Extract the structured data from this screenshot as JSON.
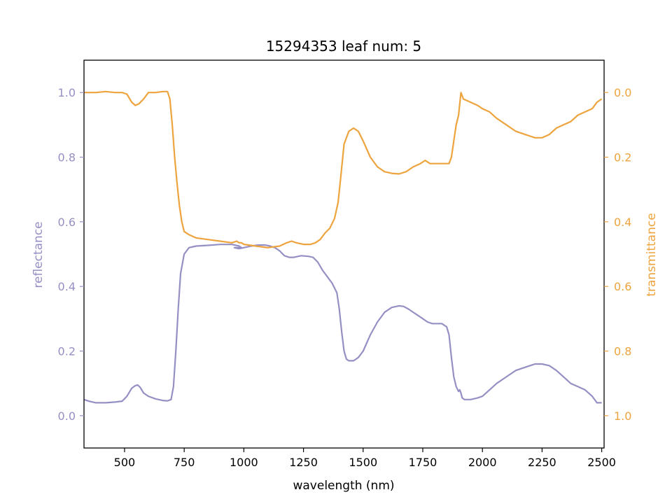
{
  "chart_data": {
    "type": "line",
    "title": "15294353 leaf num: 5",
    "xlabel": "wavelength (nm)",
    "ylabel_left": "reflectance",
    "ylabel_right": "transmittance",
    "xlim": [
      330,
      2510
    ],
    "ylim_left": [
      -0.1,
      1.1
    ],
    "ylim_right": [
      1.1,
      -0.1
    ],
    "right_axis_inverted": true,
    "x_ticks": [
      500,
      750,
      1000,
      1250,
      1500,
      1750,
      2000,
      2250,
      2500
    ],
    "y_ticks_left": [
      0.0,
      0.2,
      0.4,
      0.6,
      0.8,
      1.0
    ],
    "y_ticks_right": [
      0.0,
      0.2,
      0.4,
      0.6,
      0.8,
      1.0
    ],
    "grid": false,
    "legend": "none",
    "colors": {
      "reflectance": "#9590c4",
      "transmittance": "#eea43e",
      "axis": "#000000"
    },
    "series": [
      {
        "name": "reflectance",
        "axis": "left",
        "x": [
          330,
          350,
          380,
          420,
          460,
          490,
          510,
          530,
          545,
          555,
          565,
          580,
          600,
          630,
          660,
          680,
          695,
          705,
          715,
          725,
          735,
          750,
          770,
          800,
          850,
          900,
          950,
          980,
          990,
          960,
          980,
          1000,
          1030,
          1060,
          1090,
          1110,
          1130,
          1150,
          1170,
          1190,
          1210,
          1240,
          1270,
          1290,
          1310,
          1330,
          1350,
          1370,
          1390,
          1400,
          1410,
          1420,
          1430,
          1440,
          1450,
          1460,
          1480,
          1500,
          1530,
          1560,
          1590,
          1620,
          1650,
          1670,
          1690,
          1710,
          1730,
          1750,
          1770,
          1790,
          1810,
          1830,
          1850,
          1860,
          1870,
          1880,
          1890,
          1900,
          1905,
          1910,
          1915,
          1925,
          1950,
          1980,
          2000,
          2030,
          2060,
          2100,
          2140,
          2180,
          2220,
          2250,
          2280,
          2310,
          2340,
          2370,
          2400,
          2430,
          2460,
          2480,
          2500
        ],
        "y": [
          0.05,
          0.045,
          0.04,
          0.04,
          0.042,
          0.045,
          0.06,
          0.085,
          0.093,
          0.095,
          0.088,
          0.07,
          0.06,
          0.052,
          0.047,
          0.046,
          0.05,
          0.09,
          0.2,
          0.33,
          0.44,
          0.5,
          0.52,
          0.525,
          0.527,
          0.53,
          0.53,
          0.525,
          0.52,
          0.52,
          0.517,
          0.52,
          0.525,
          0.528,
          0.528,
          0.525,
          0.52,
          0.51,
          0.495,
          0.49,
          0.49,
          0.495,
          0.493,
          0.49,
          0.475,
          0.45,
          0.43,
          0.41,
          0.38,
          0.33,
          0.26,
          0.2,
          0.175,
          0.17,
          0.17,
          0.17,
          0.18,
          0.2,
          0.25,
          0.29,
          0.32,
          0.335,
          0.34,
          0.338,
          0.33,
          0.32,
          0.31,
          0.3,
          0.29,
          0.285,
          0.285,
          0.285,
          0.275,
          0.25,
          0.18,
          0.12,
          0.09,
          0.075,
          0.08,
          0.07,
          0.055,
          0.05,
          0.05,
          0.055,
          0.06,
          0.08,
          0.1,
          0.12,
          0.14,
          0.15,
          0.16,
          0.16,
          0.155,
          0.14,
          0.12,
          0.1,
          0.09,
          0.08,
          0.06,
          0.04,
          0.04
        ]
      },
      {
        "name": "transmittance",
        "axis": "right",
        "x": [
          330,
          350,
          380,
          420,
          460,
          490,
          510,
          530,
          545,
          560,
          580,
          600,
          630,
          660,
          680,
          690,
          700,
          710,
          720,
          730,
          740,
          750,
          770,
          800,
          850,
          900,
          950,
          970,
          980,
          990,
          1000,
          1050,
          1100,
          1150,
          1180,
          1200,
          1220,
          1250,
          1280,
          1300,
          1320,
          1340,
          1360,
          1380,
          1395,
          1405,
          1420,
          1440,
          1460,
          1480,
          1500,
          1530,
          1560,
          1590,
          1620,
          1650,
          1680,
          1710,
          1740,
          1760,
          1780,
          1800,
          1820,
          1840,
          1860,
          1870,
          1880,
          1890,
          1900,
          1910,
          1920,
          1950,
          1980,
          2000,
          2030,
          2060,
          2100,
          2140,
          2180,
          2220,
          2250,
          2280,
          2310,
          2340,
          2370,
          2400,
          2430,
          2460,
          2480,
          2500
        ],
        "y": [
          0.0,
          0.0,
          0.0,
          -0.003,
          0.0,
          0.0,
          0.005,
          0.03,
          0.04,
          0.035,
          0.02,
          0.0,
          0.0,
          -0.003,
          -0.003,
          0.02,
          0.1,
          0.2,
          0.28,
          0.35,
          0.4,
          0.43,
          0.44,
          0.45,
          0.455,
          0.46,
          0.465,
          0.46,
          0.465,
          0.465,
          0.47,
          0.475,
          0.48,
          0.475,
          0.465,
          0.46,
          0.465,
          0.47,
          0.47,
          0.465,
          0.455,
          0.435,
          0.42,
          0.39,
          0.34,
          0.27,
          0.16,
          0.12,
          0.11,
          0.12,
          0.15,
          0.2,
          0.23,
          0.245,
          0.25,
          0.252,
          0.245,
          0.23,
          0.22,
          0.21,
          0.22,
          0.22,
          0.22,
          0.22,
          0.22,
          0.2,
          0.15,
          0.1,
          0.07,
          0.0,
          0.02,
          0.03,
          0.04,
          0.05,
          0.06,
          0.08,
          0.1,
          0.12,
          0.13,
          0.14,
          0.14,
          0.13,
          0.11,
          0.1,
          0.09,
          0.07,
          0.06,
          0.05,
          0.03,
          0.02
        ]
      }
    ]
  }
}
